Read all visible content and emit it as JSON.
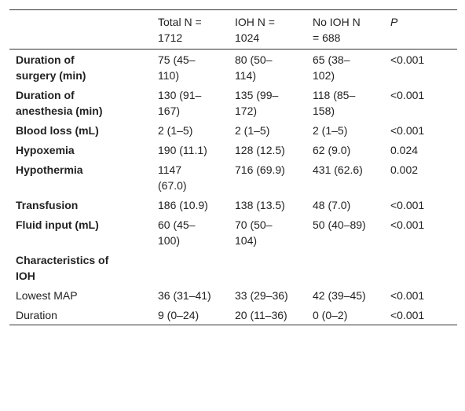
{
  "table": {
    "header": [
      "Total N = 1712",
      "IOH N = 1024",
      "No IOH N = 688",
      "P"
    ],
    "rows": [
      [
        "Duration of surgery (min)",
        "75 (45–110)",
        "80 (50–114)",
        "65 (38–102)",
        "<0.001"
      ],
      [
        "Duration of anesthesia (min)",
        "130 (91–167)",
        "135 (99–172)",
        "118 (85–158)",
        "<0.001"
      ],
      [
        "Blood loss (mL)",
        "2 (1–5)",
        "2 (1–5)",
        "2 (1–5)",
        "<0.001"
      ],
      [
        "Hypoxemia",
        "190 (11.1)",
        "128 (12.5)",
        "62 (9.0)",
        "0.024"
      ],
      [
        "Hypothermia",
        "1147 (67.0)",
        "716 (69.9)",
        "431 (62.6)",
        "0.002"
      ],
      [
        "Transfusion",
        "186 (10.9)",
        "138 (13.5)",
        "48 (7.0)",
        "<0.001"
      ],
      [
        "Fluid input (mL)",
        "60 (45–100)",
        "70 (50–104)",
        "50 (40–89)",
        "<0.001"
      ],
      [
        "Characteristics of IOH"
      ],
      [
        "Lowest MAP",
        "36 (31–41)",
        "33 (29–36)",
        "42 (39–45)",
        "<0.001"
      ],
      [
        "Duration",
        "9 (0–24)",
        "20 (11–36)",
        "0 (0–2)",
        "<0.001"
      ]
    ]
  }
}
